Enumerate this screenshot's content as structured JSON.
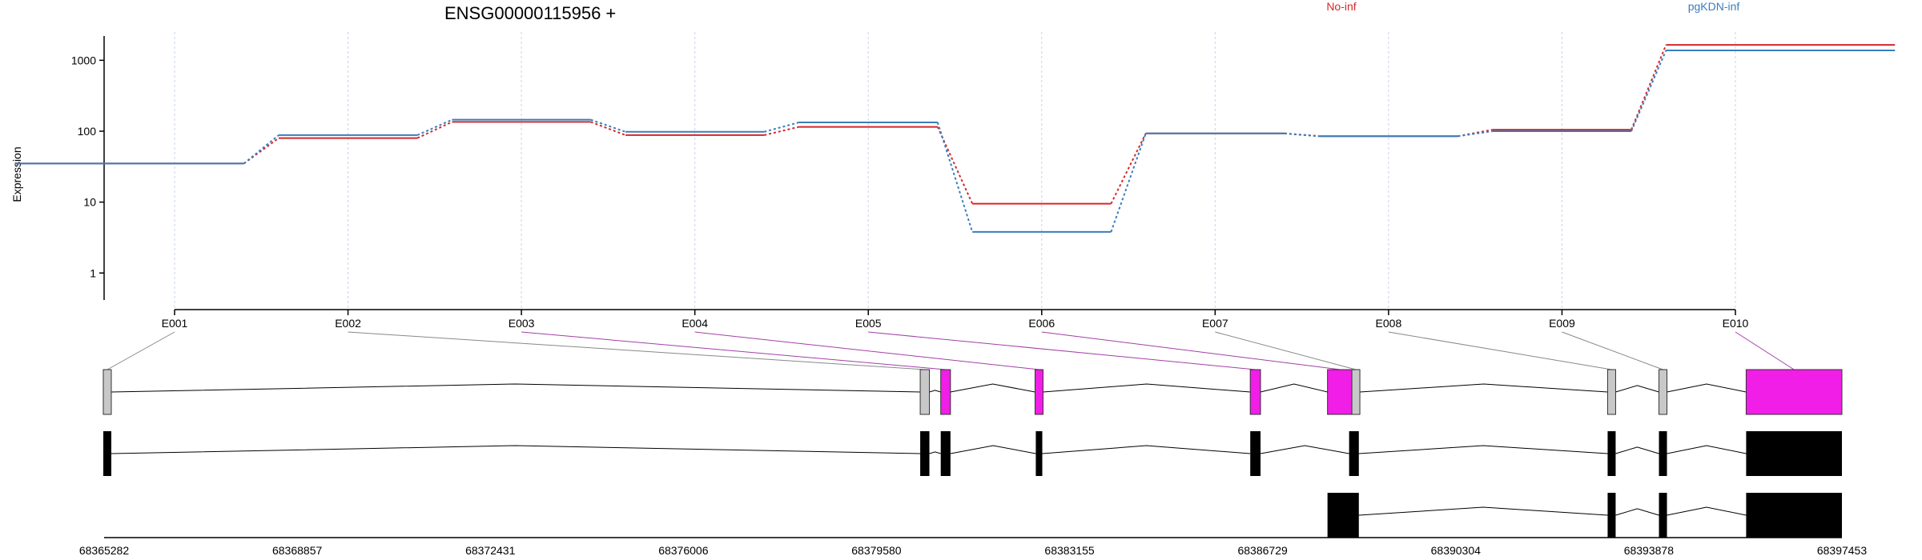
{
  "chart_data": {
    "type": "line",
    "title": "ENSG00000115956 +",
    "ylabel": "Expression",
    "xlabel": "",
    "yscale": "log",
    "ylim": [
      0.45,
      2200
    ],
    "yticks": [
      "1",
      "10",
      "100",
      "1000"
    ],
    "categories": [
      "E001",
      "E002",
      "E003",
      "E004",
      "E005",
      "E006",
      "E007",
      "E008",
      "E009",
      "E010"
    ],
    "series": [
      {
        "name": "No-inf",
        "color": "#d62728",
        "values": [
          35,
          80,
          135,
          88,
          115,
          9.5,
          93,
          85,
          105,
          1650
        ]
      },
      {
        "name": "pgKDN-inf",
        "color": "#3a7dbd",
        "values": [
          35,
          88,
          145,
          98,
          133,
          3.8,
          93,
          85,
          100,
          1380
        ]
      }
    ],
    "gene_model": {
      "coordinate_labels": [
        "68365282",
        "68368857",
        "68372431",
        "68376006",
        "68379580",
        "68383155",
        "68386729",
        "68390304",
        "68393878",
        "68397453"
      ],
      "coord_range": [
        68365282,
        68397453
      ],
      "exon_bins": [
        {
          "id": "E001",
          "start": 68365282,
          "end": 68365400,
          "highlight": false
        },
        {
          "id": "E002",
          "start": 68380390,
          "end": 68380560,
          "highlight": false
        },
        {
          "id": "E003",
          "start": 68380770,
          "end": 68380950,
          "highlight": true
        },
        {
          "id": "E004",
          "start": 68382530,
          "end": 68382650,
          "highlight": true
        },
        {
          "id": "E005",
          "start": 68386500,
          "end": 68386690,
          "highlight": true
        },
        {
          "id": "E006",
          "start": 68387930,
          "end": 68388400,
          "highlight": true
        },
        {
          "id": "E007",
          "start": 68388400,
          "end": 68388510,
          "highlight": false
        },
        {
          "id": "E008",
          "start": 68393140,
          "end": 68393240,
          "highlight": false
        },
        {
          "id": "E009",
          "start": 68394090,
          "end": 68394190,
          "highlight": false
        },
        {
          "id": "E010",
          "start": 68395680,
          "end": 68397453,
          "highlight": true
        }
      ],
      "transcripts": [
        {
          "exons": [
            [
              68365282,
              68365400
            ],
            [
              68380390,
              68380560
            ],
            [
              68380770,
              68380950
            ],
            [
              68382530,
              68382650
            ],
            [
              68386500,
              68386690
            ],
            [
              68388330,
              68388510
            ],
            [
              68393140,
              68393240
            ],
            [
              68394090,
              68394190
            ],
            [
              68395680,
              68397453
            ]
          ]
        },
        {
          "exons": [
            [
              68387930,
              68388510
            ],
            [
              68393140,
              68393240
            ],
            [
              68394090,
              68394190
            ],
            [
              68395680,
              68397453
            ]
          ]
        }
      ]
    }
  },
  "colors": {
    "highlight": "#f01ee6",
    "plain_exon": "#c8c8c8",
    "transcript": "#000000",
    "connector_plain": "#888888",
    "connector_highlight": "#a33fa8",
    "grid": "#c9d3ea"
  }
}
